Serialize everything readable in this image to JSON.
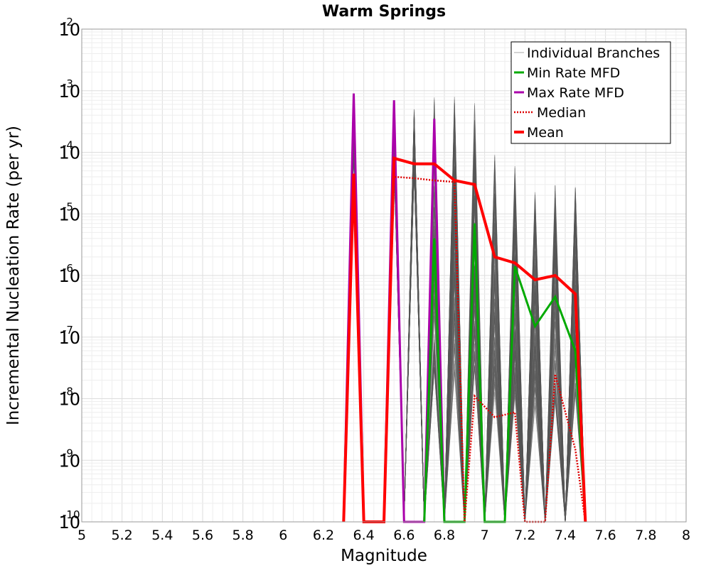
{
  "chart_data": {
    "type": "line",
    "title": "Warm Springs",
    "xlabel": "Magnitude",
    "ylabel": "Incremental Nucleation Rate (per yr)",
    "xlim": [
      5,
      8
    ],
    "ylim": [
      1e-10,
      0.01
    ],
    "y_scale": "log",
    "grid": true,
    "legend_position": "top-right",
    "x_ticks": [
      "5",
      "5.2",
      "5.4",
      "5.6",
      "5.8",
      "6",
      "6.2",
      "6.4",
      "6.6",
      "6.8",
      "7",
      "7.2",
      "7.4",
      "7.6",
      "7.8",
      "8"
    ],
    "y_ticks": [
      {
        "base": "10",
        "exp": "-10"
      },
      {
        "base": "10",
        "exp": "-9"
      },
      {
        "base": "10",
        "exp": "-8"
      },
      {
        "base": "10",
        "exp": "-7"
      },
      {
        "base": "10",
        "exp": "-6"
      },
      {
        "base": "10",
        "exp": "-5"
      },
      {
        "base": "10",
        "exp": "-4"
      },
      {
        "base": "10",
        "exp": "-3"
      },
      {
        "base": "10",
        "exp": "-2"
      }
    ],
    "branch_magnitudes": [
      6.55,
      6.65,
      6.75,
      6.85,
      6.95,
      7.05,
      7.15,
      7.25,
      7.35,
      7.45
    ],
    "series": [
      {
        "name": "Individual Branches",
        "color": "#555555",
        "style": "thin",
        "x": [
          6.3,
          6.35,
          6.4,
          6.5,
          6.55,
          6.6,
          6.65,
          6.7,
          6.75,
          6.8,
          6.85,
          6.9,
          6.95,
          7.0,
          7.05,
          7.1,
          7.15,
          7.2,
          7.25,
          7.3,
          7.35,
          7.4,
          7.45,
          7.5
        ],
        "y_low": [
          1e-10,
          3e-05,
          1e-10,
          1e-10,
          2e-05,
          1e-10,
          1.5e-05,
          1e-10,
          1e-10,
          1e-10,
          1e-10,
          1e-10,
          1e-10,
          1e-10,
          1e-10,
          1e-10,
          1e-10,
          1e-10,
          1e-10,
          1e-10,
          1e-10,
          1e-10,
          1e-10,
          1e-10
        ],
        "y_high": [
          1e-10,
          0.0009,
          1e-10,
          1e-10,
          0.0007,
          1e-10,
          0.0005,
          1e-10,
          0.0009,
          1e-10,
          0.0008,
          1e-10,
          0.0007,
          1e-10,
          0.0001,
          1e-10,
          7e-05,
          1e-10,
          2.5e-05,
          1e-10,
          4e-05,
          1e-10,
          3.5e-05,
          1e-10
        ]
      },
      {
        "name": "Min Rate MFD",
        "color": "#00aa00",
        "style": "solid",
        "x": [
          6.7,
          6.75,
          6.8,
          6.9,
          6.95,
          7.0,
          7.1,
          7.15,
          7.25,
          7.35,
          7.45,
          7.5
        ],
        "y": [
          1e-10,
          4e-06,
          1e-10,
          1e-10,
          7e-06,
          1e-10,
          1e-10,
          1.4e-06,
          1.5e-07,
          4.5e-07,
          6e-08,
          1e-10
        ]
      },
      {
        "name": "Max Rate MFD",
        "color": "#aa00aa",
        "style": "solid",
        "x": [
          6.3,
          6.35,
          6.4,
          6.5,
          6.55,
          6.6,
          6.7,
          6.75,
          6.8
        ],
        "y": [
          1e-10,
          0.0009,
          1e-10,
          1e-10,
          0.0007,
          1e-10,
          1e-10,
          0.00035,
          1e-10
        ]
      },
      {
        "name": "Median",
        "color": "#dd0000",
        "style": "dotted",
        "x": [
          6.3,
          6.35,
          6.4,
          6.5,
          6.55,
          6.65,
          6.75,
          6.85,
          6.9,
          6.95,
          7.05,
          7.15,
          7.2,
          7.3,
          7.35,
          7.45,
          7.5
        ],
        "y": [
          1e-10,
          4e-05,
          1e-10,
          1e-10,
          4e-05,
          3.8e-05,
          3.5e-05,
          3.3e-05,
          1e-10,
          1.1e-08,
          5e-09,
          6e-09,
          1e-10,
          1e-10,
          2.5e-08,
          1.5e-09,
          1e-10
        ]
      },
      {
        "name": "Mean",
        "color": "#ff0000",
        "style": "thick",
        "x": [
          6.3,
          6.35,
          6.4,
          6.5,
          6.55,
          6.65,
          6.75,
          6.85,
          6.95,
          7.05,
          7.15,
          7.25,
          7.35,
          7.45,
          7.5
        ],
        "y": [
          1e-10,
          4.5e-05,
          1e-10,
          1e-10,
          8e-05,
          6.5e-05,
          6.5e-05,
          3.5e-05,
          3e-05,
          2e-06,
          1.6e-06,
          8.5e-07,
          1e-06,
          5e-07,
          1e-10
        ]
      }
    ]
  }
}
